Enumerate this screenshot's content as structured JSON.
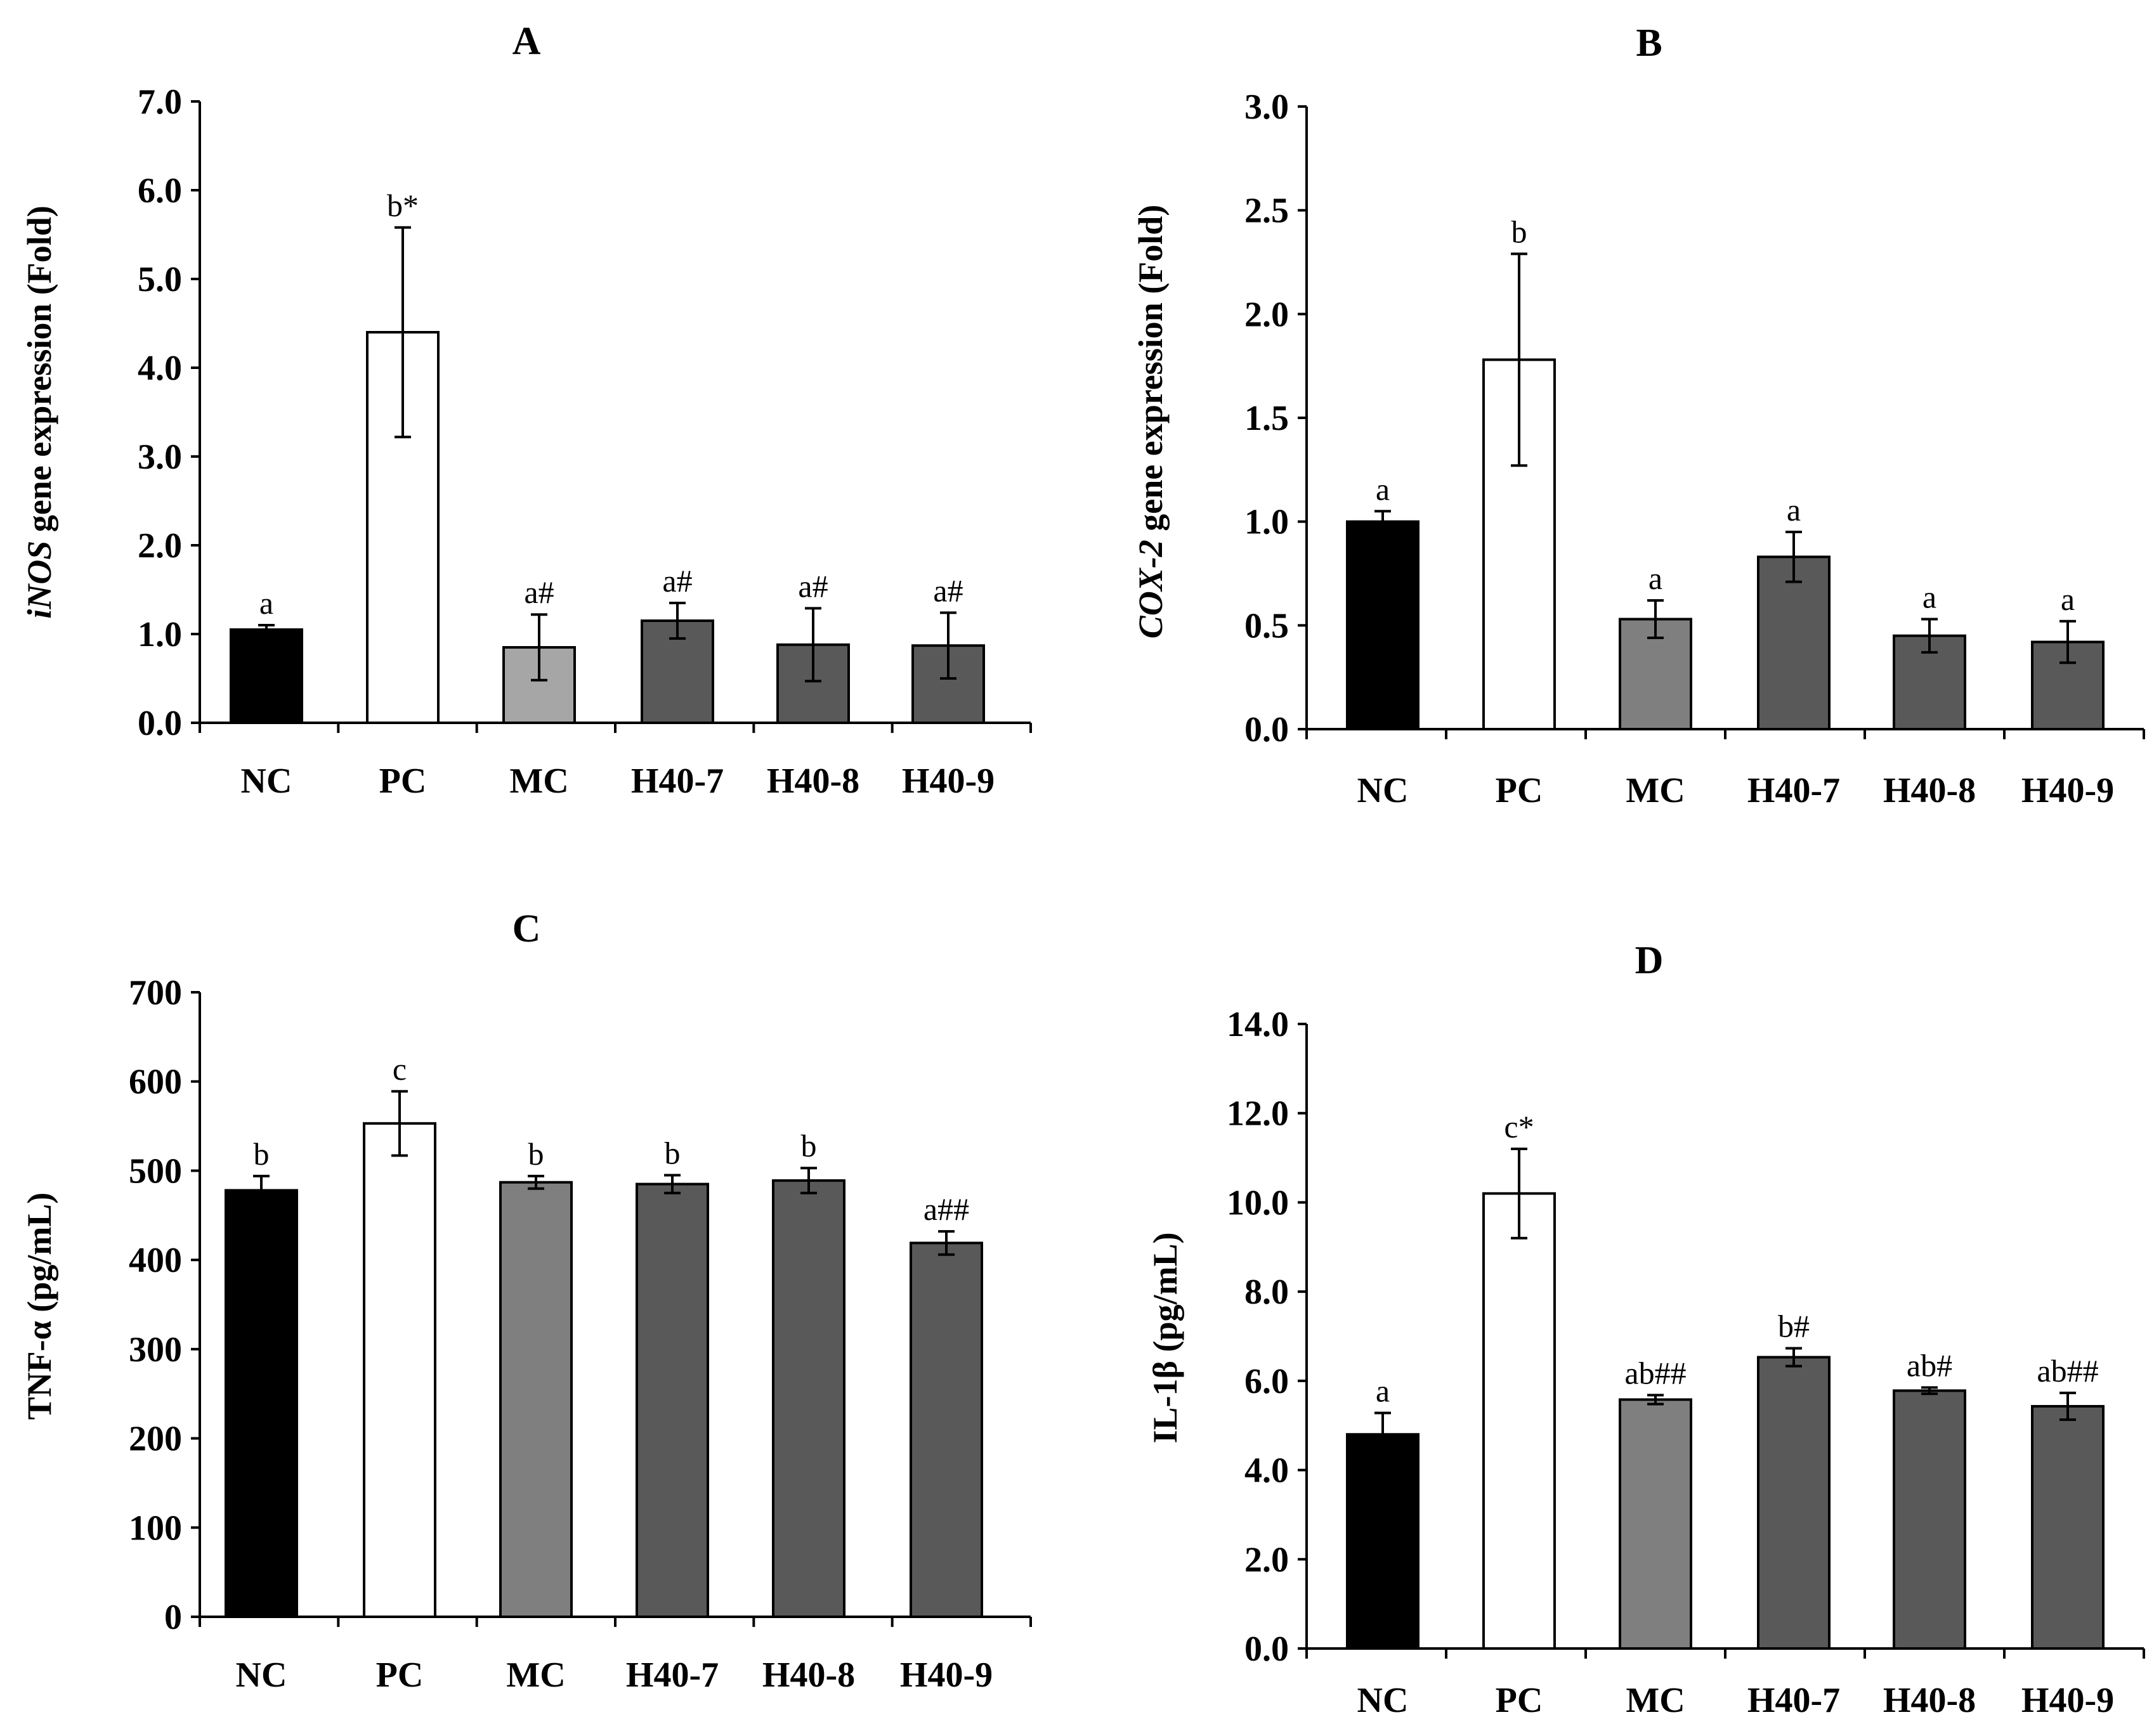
{
  "figure": {
    "colors": {
      "NC": "#000000",
      "PC": "#ffffff",
      "MC_A": "#a6a6a6",
      "MC_other": "#7f7f7f",
      "H40": "#595959",
      "axis": "#000000"
    }
  },
  "chart_data": [
    {
      "panel": "A",
      "type": "bar",
      "title": "A",
      "ylabel_italic": "iNOS",
      "ylabel_rest": " gene expression (Fold)",
      "categories": [
        "NC",
        "PC",
        "MC",
        "H40-7",
        "H40-8",
        "H40-9"
      ],
      "values": [
        1.05,
        4.4,
        0.85,
        1.15,
        0.88,
        0.87
      ],
      "errors": [
        0.05,
        1.18,
        0.37,
        0.2,
        0.41,
        0.37
      ],
      "labels": [
        "a",
        "b*",
        "a#",
        "a#",
        "a#",
        "a#"
      ],
      "ylim": [
        0,
        7
      ],
      "yticks": [
        "0.0",
        "1.0",
        "2.0",
        "3.0",
        "4.0",
        "5.0",
        "6.0",
        "7.0"
      ],
      "tick_values": [
        0,
        1,
        2,
        3,
        4,
        5,
        6,
        7
      ]
    },
    {
      "panel": "B",
      "type": "bar",
      "title": "B",
      "ylabel_italic": "COX-2",
      "ylabel_rest": " gene expression (Fold)",
      "categories": [
        "NC",
        "PC",
        "MC",
        "H40-7",
        "H40-8",
        "H40-9"
      ],
      "values": [
        1.0,
        1.78,
        0.53,
        0.83,
        0.45,
        0.42
      ],
      "errors": [
        0.05,
        0.51,
        0.09,
        0.12,
        0.08,
        0.1
      ],
      "labels": [
        "a",
        "b",
        "a",
        "a",
        "a",
        "a"
      ],
      "ylim": [
        0,
        3
      ],
      "yticks": [
        "0.0",
        "0.5",
        "1.0",
        "1.5",
        "2.0",
        "2.5",
        "3.0"
      ],
      "tick_values": [
        0,
        0.5,
        1,
        1.5,
        2,
        2.5,
        3
      ]
    },
    {
      "panel": "C",
      "type": "bar",
      "title": "C",
      "ylabel_italic": "",
      "ylabel_rest": "TNF-α (pg/mL)",
      "categories": [
        "NC",
        "PC",
        "MC",
        "H40-7",
        "H40-8",
        "H40-9"
      ],
      "values": [
        478,
        553,
        487,
        485,
        489,
        419
      ],
      "errors": [
        16,
        36,
        7,
        10,
        14,
        13
      ],
      "labels": [
        "b",
        "c",
        "b",
        "b",
        "b",
        "a##"
      ],
      "ylim": [
        0,
        700
      ],
      "yticks": [
        "0",
        "100",
        "200",
        "300",
        "400",
        "500",
        "600",
        "700"
      ],
      "tick_values": [
        0,
        100,
        200,
        300,
        400,
        500,
        600,
        700
      ]
    },
    {
      "panel": "D",
      "type": "bar",
      "title": "D",
      "ylabel_italic": "",
      "ylabel_rest": "IL-1β (pg/mL)",
      "categories": [
        "NC",
        "PC",
        "MC",
        "H40-7",
        "H40-8",
        "H40-9"
      ],
      "values": [
        4.8,
        10.2,
        5.58,
        6.53,
        5.78,
        5.43
      ],
      "errors": [
        0.48,
        1.0,
        0.1,
        0.2,
        0.07,
        0.3
      ],
      "labels": [
        "a",
        "c*",
        "ab##",
        "b#",
        "ab#",
        "ab##"
      ],
      "ylim": [
        0,
        14
      ],
      "yticks": [
        "0.0",
        "2.0",
        "4.0",
        "6.0",
        "8.0",
        "10.0",
        "12.0",
        "14.0"
      ],
      "tick_values": [
        0,
        2,
        4,
        6,
        8,
        10,
        12,
        14
      ]
    }
  ]
}
